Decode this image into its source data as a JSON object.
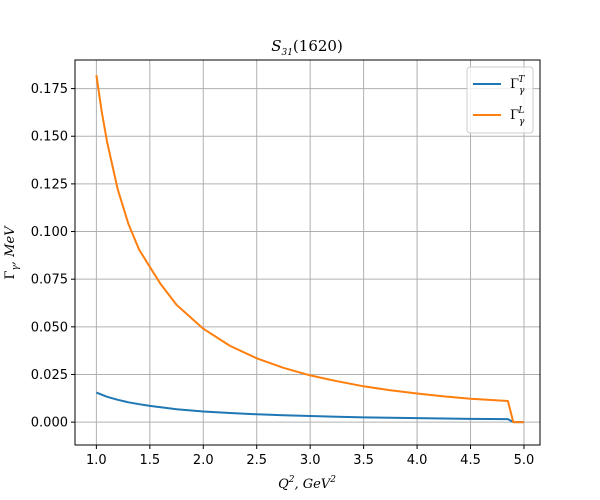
{
  "chart_data": {
    "type": "line",
    "title": "S31(1620)",
    "title_parts": {
      "main": "S",
      "sub": "31",
      "rest": "(1620)"
    },
    "xlabel": "Q², GeV²",
    "xlabel_parts": {
      "q": "Q",
      "q_sup": "2",
      "rest": ", GeV",
      "gev_sup": "2"
    },
    "ylabel": "Γγ, MeV",
    "ylabel_parts": {
      "gamma": "Γ",
      "gamma_sub": "γ",
      "rest": ", MeV"
    },
    "xlim": [
      0.8,
      5.15
    ],
    "ylim": [
      -0.012,
      0.19
    ],
    "xticks": [
      1.0,
      1.5,
      2.0,
      2.5,
      3.0,
      3.5,
      4.0,
      4.5,
      5.0
    ],
    "xtick_labels": [
      "1.0",
      "1.5",
      "2.0",
      "2.5",
      "3.0",
      "3.5",
      "4.0",
      "4.5",
      "5.0"
    ],
    "yticks": [
      0.0,
      0.025,
      0.05,
      0.075,
      0.1,
      0.125,
      0.15,
      0.175
    ],
    "ytick_labels": [
      "0.000",
      "0.025",
      "0.050",
      "0.075",
      "0.100",
      "0.125",
      "0.150",
      "0.175"
    ],
    "grid": true,
    "legend_position": "top-right",
    "series": [
      {
        "name": "ΓγT",
        "name_parts": {
          "base": "Γ",
          "sub": "γ",
          "sup": "T"
        },
        "color": "#1f77b4",
        "x": [
          1.0,
          1.1,
          1.2,
          1.3,
          1.4,
          1.5,
          1.75,
          2.0,
          2.25,
          2.5,
          2.75,
          3.0,
          3.25,
          3.5,
          3.75,
          4.0,
          4.25,
          4.5,
          4.85,
          4.9,
          5.0
        ],
        "y": [
          0.0155,
          0.0133,
          0.0117,
          0.0104,
          0.0094,
          0.0085,
          0.0068,
          0.0056,
          0.0048,
          0.0041,
          0.0036,
          0.0032,
          0.0028,
          0.0025,
          0.0023,
          0.0021,
          0.0019,
          0.0017,
          0.0016,
          0.0,
          0.0
        ]
      },
      {
        "name": "ΓγL",
        "name_parts": {
          "base": "Γ",
          "sub": "γ",
          "sup": "L"
        },
        "color": "#ff7f0e",
        "x": [
          1.0,
          1.05,
          1.1,
          1.2,
          1.3,
          1.4,
          1.5,
          1.6,
          1.75,
          2.0,
          2.25,
          2.5,
          2.75,
          3.0,
          3.25,
          3.5,
          3.75,
          4.0,
          4.25,
          4.5,
          4.85,
          4.9,
          5.0
        ],
        "y": [
          0.182,
          0.163,
          0.147,
          0.122,
          0.104,
          0.0905,
          0.0815,
          0.0725,
          0.0615,
          0.049,
          0.04,
          0.0335,
          0.0285,
          0.0245,
          0.0215,
          0.0188,
          0.0167,
          0.015,
          0.0135,
          0.0123,
          0.0111,
          0.0,
          0.0
        ]
      }
    ]
  }
}
